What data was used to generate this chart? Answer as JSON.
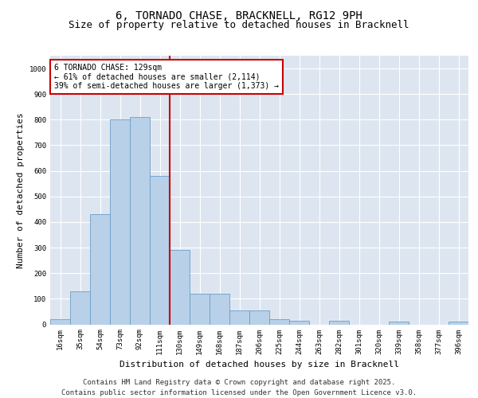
{
  "title_line1": "6, TORNADO CHASE, BRACKNELL, RG12 9PH",
  "title_line2": "Size of property relative to detached houses in Bracknell",
  "xlabel": "Distribution of detached houses by size in Bracknell",
  "ylabel": "Number of detached properties",
  "categories": [
    "16sqm",
    "35sqm",
    "54sqm",
    "73sqm",
    "92sqm",
    "111sqm",
    "130sqm",
    "149sqm",
    "168sqm",
    "187sqm",
    "206sqm",
    "225sqm",
    "244sqm",
    "263sqm",
    "282sqm",
    "301sqm",
    "320sqm",
    "339sqm",
    "358sqm",
    "377sqm",
    "396sqm"
  ],
  "values": [
    20,
    130,
    430,
    800,
    810,
    580,
    290,
    120,
    120,
    55,
    55,
    20,
    15,
    0,
    15,
    0,
    0,
    10,
    0,
    0,
    10
  ],
  "bar_color": "#b8d0e8",
  "bar_edge_color": "#6a9fc8",
  "property_line_x": 5.5,
  "annotation_text": "6 TORNADO CHASE: 129sqm\n← 61% of detached houses are smaller (2,114)\n39% of semi-detached houses are larger (1,373) →",
  "annotation_box_facecolor": "#ffffff",
  "annotation_box_edgecolor": "#cc0000",
  "ylim": [
    0,
    1050
  ],
  "yticks": [
    0,
    100,
    200,
    300,
    400,
    500,
    600,
    700,
    800,
    900,
    1000
  ],
  "background_color": "#dde6f0",
  "grid_color": "#ffffff",
  "footer_line1": "Contains HM Land Registry data © Crown copyright and database right 2025.",
  "footer_line2": "Contains public sector information licensed under the Open Government Licence v3.0.",
  "title_fontsize": 10,
  "subtitle_fontsize": 9,
  "ylabel_fontsize": 8,
  "xlabel_fontsize": 8,
  "tick_fontsize": 6.5,
  "annotation_fontsize": 7,
  "footer_fontsize": 6.5
}
